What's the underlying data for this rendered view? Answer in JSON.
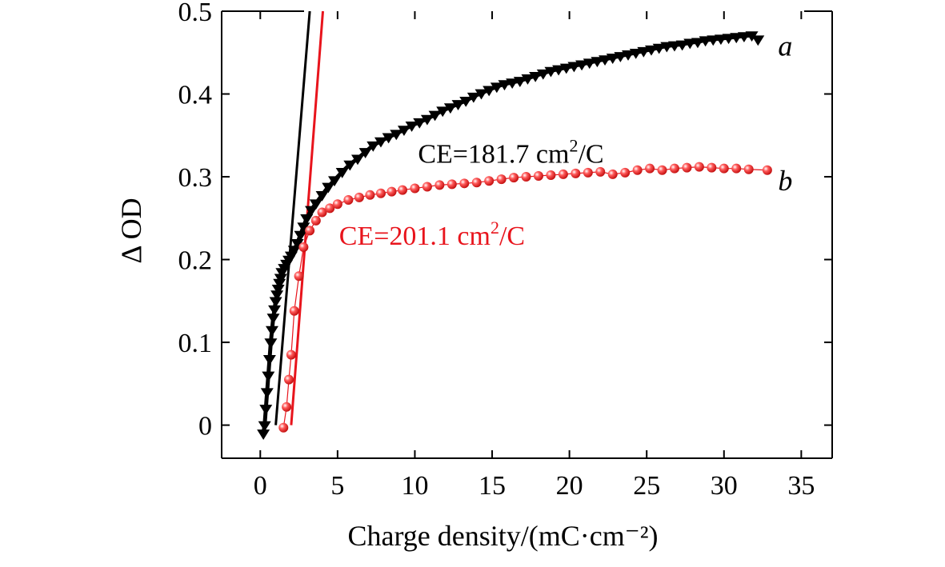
{
  "chart_data": {
    "type": "scatter",
    "title": "",
    "xlabel": "Charge density/(mC·cm⁻²)",
    "ylabel": "Δ OD",
    "xlim": [
      -2.5,
      37
    ],
    "ylim": [
      -0.04,
      0.5
    ],
    "xticks": [
      0,
      5,
      10,
      15,
      20,
      25,
      30,
      35
    ],
    "yticks": [
      0,
      0.1,
      0.2,
      0.3,
      0.4,
      0.5
    ],
    "xtick_labels": [
      "0",
      "5",
      "10",
      "15",
      "20",
      "25",
      "30",
      "35"
    ],
    "ytick_labels": [
      "0",
      "0.1",
      "0.2",
      "0.3",
      "0.4",
      "0.5"
    ],
    "colors": {
      "series_a": "#000000",
      "series_b": "#e8141c",
      "axis": "#000000"
    },
    "series": [
      {
        "name": "a",
        "marker": "triangle-down",
        "color": "#000000",
        "x": [
          0.2,
          0.28,
          0.36,
          0.44,
          0.52,
          0.6,
          0.68,
          0.76,
          0.84,
          0.92,
          1.0,
          1.08,
          1.16,
          1.24,
          1.32,
          1.4,
          1.55,
          1.7,
          1.85,
          2.0,
          2.2,
          2.4,
          2.6,
          2.8,
          3.0,
          3.3,
          3.6,
          4.0,
          4.4,
          4.8,
          5.3,
          5.8,
          6.3,
          6.8,
          7.3,
          7.8,
          8.3,
          8.8,
          9.3,
          9.8,
          10.3,
          10.8,
          11.3,
          11.8,
          12.3,
          12.8,
          13.3,
          13.8,
          14.3,
          14.8,
          15.3,
          15.8,
          16.3,
          16.8,
          17.3,
          17.8,
          18.3,
          18.8,
          19.3,
          19.8,
          20.3,
          20.8,
          21.3,
          21.8,
          22.3,
          22.8,
          23.3,
          23.8,
          24.3,
          24.8,
          25.3,
          25.8,
          26.3,
          26.8,
          27.3,
          27.8,
          28.3,
          28.8,
          29.3,
          29.8,
          30.3,
          30.8,
          31.3,
          31.8,
          32.2
        ],
        "y": [
          -0.01,
          0.0,
          0.02,
          0.04,
          0.06,
          0.08,
          0.1,
          0.115,
          0.13,
          0.14,
          0.15,
          0.158,
          0.165,
          0.172,
          0.178,
          0.185,
          0.19,
          0.195,
          0.2,
          0.205,
          0.212,
          0.22,
          0.23,
          0.24,
          0.25,
          0.26,
          0.268,
          0.278,
          0.288,
          0.296,
          0.306,
          0.315,
          0.322,
          0.33,
          0.338,
          0.343,
          0.348,
          0.352,
          0.357,
          0.362,
          0.366,
          0.37,
          0.375,
          0.38,
          0.384,
          0.388,
          0.392,
          0.397,
          0.401,
          0.405,
          0.409,
          0.412,
          0.414,
          0.416,
          0.419,
          0.422,
          0.425,
          0.428,
          0.43,
          0.432,
          0.434,
          0.436,
          0.438,
          0.44,
          0.442,
          0.444,
          0.446,
          0.448,
          0.45,
          0.452,
          0.454,
          0.456,
          0.458,
          0.459,
          0.46,
          0.462,
          0.463,
          0.465,
          0.466,
          0.467,
          0.468,
          0.469,
          0.47,
          0.471,
          0.466
        ]
      },
      {
        "name": "b",
        "marker": "circle",
        "color": "#e8141c",
        "x": [
          1.5,
          1.7,
          1.85,
          2.0,
          2.2,
          2.5,
          2.8,
          3.2,
          3.6,
          4.0,
          4.5,
          5.0,
          5.7,
          6.4,
          7.1,
          7.8,
          8.5,
          9.2,
          10.0,
          10.8,
          11.6,
          12.4,
          13.2,
          14.0,
          14.8,
          15.6,
          16.4,
          17.2,
          18.0,
          18.8,
          19.6,
          20.4,
          21.2,
          22.0,
          22.8,
          23.6,
          24.4,
          25.2,
          26.0,
          26.8,
          27.6,
          28.4,
          29.2,
          30.0,
          30.8,
          31.6,
          32.8
        ],
        "y": [
          -0.003,
          0.022,
          0.055,
          0.085,
          0.138,
          0.18,
          0.215,
          0.235,
          0.247,
          0.257,
          0.262,
          0.267,
          0.272,
          0.275,
          0.278,
          0.28,
          0.282,
          0.284,
          0.286,
          0.288,
          0.29,
          0.291,
          0.292,
          0.293,
          0.295,
          0.297,
          0.299,
          0.3,
          0.301,
          0.302,
          0.303,
          0.304,
          0.305,
          0.306,
          0.303,
          0.305,
          0.308,
          0.31,
          0.308,
          0.31,
          0.311,
          0.312,
          0.311,
          0.31,
          0.31,
          0.309,
          0.308
        ]
      }
    ],
    "fit_lines": [
      {
        "name": "fit-a",
        "color": "#000000",
        "x": [
          1.0,
          3.2
        ],
        "y": [
          0.0,
          0.5
        ]
      },
      {
        "name": "fit-b",
        "color": "#e8141c",
        "x": [
          2.0,
          4.05
        ],
        "y": [
          0.0,
          0.5
        ]
      }
    ],
    "annotations": [
      {
        "name": "ce-a",
        "base": "CE=181.7 cm",
        "sup": "2",
        "tail": "/C",
        "color": "#000000",
        "x": 10.2,
        "y": 0.317
      },
      {
        "name": "ce-b",
        "base": "CE=201.1 cm",
        "sup": "2",
        "tail": "/C",
        "color": "#e8141c",
        "x": 5.1,
        "y": 0.218
      }
    ],
    "curve_labels": [
      {
        "name": "a",
        "text": "a",
        "x": 33.5,
        "y": 0.458
      },
      {
        "name": "b",
        "text": "b",
        "x": 33.5,
        "y": 0.295
      }
    ]
  }
}
